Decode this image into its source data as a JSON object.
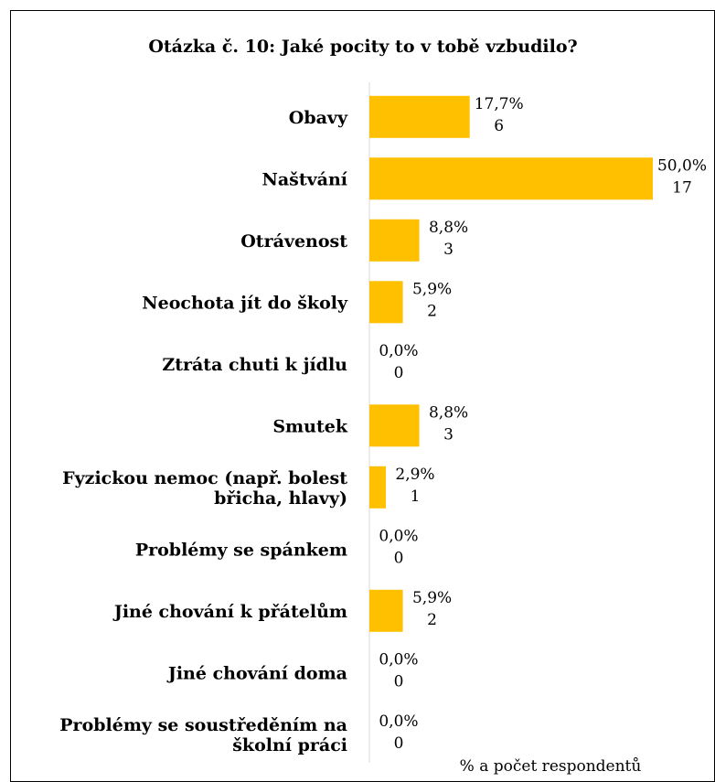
{
  "chart_data": {
    "type": "bar",
    "orientation": "horizontal",
    "title": "Otázka č. 10: Jaké pocity to v tobě vzbudilo?",
    "unit_note": "% a počet respondentů",
    "bar_color": "#FFC000",
    "xlim": [
      0,
      50
    ],
    "grid": false,
    "legend": false,
    "categories": [
      [
        "Obavy"
      ],
      [
        "Naštvání"
      ],
      [
        "Otrávenost"
      ],
      [
        "Neochota jít do školy"
      ],
      [
        "Ztráta chuti k jídlu"
      ],
      [
        "Smutek"
      ],
      [
        "Fyzickou nemoc (např. bolest",
        "břicha, hlavy)"
      ],
      [
        "Problémy se spánkem"
      ],
      [
        "Jiné chování k přátelům"
      ],
      [
        "Jiné chování doma"
      ],
      [
        "Problémy se soustředěním na",
        "školní práci"
      ]
    ],
    "percent_labels": [
      "17,7%",
      "50,0%",
      "8,8%",
      "5,9%",
      "0,0%",
      "8,8%",
      "2,9%",
      "0,0%",
      "5,9%",
      "0,0%",
      "0,0%"
    ],
    "percent_values": [
      17.7,
      50.0,
      8.8,
      5.9,
      0.0,
      8.8,
      2.9,
      0.0,
      5.9,
      0.0,
      0.0
    ],
    "counts": [
      6,
      17,
      3,
      2,
      0,
      3,
      1,
      0,
      2,
      0,
      0
    ]
  }
}
